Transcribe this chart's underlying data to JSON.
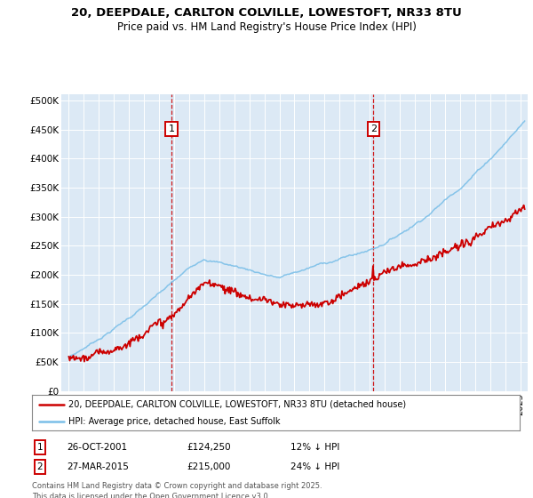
{
  "title_line1": "20, DEEPDALE, CARLTON COLVILLE, LOWESTOFT, NR33 8TU",
  "title_line2": "Price paid vs. HM Land Registry's House Price Index (HPI)",
  "ylabel_ticks": [
    "£0",
    "£50K",
    "£100K",
    "£150K",
    "£200K",
    "£250K",
    "£300K",
    "£350K",
    "£400K",
    "£450K",
    "£500K"
  ],
  "ytick_values": [
    0,
    50000,
    100000,
    150000,
    200000,
    250000,
    300000,
    350000,
    400000,
    450000,
    500000
  ],
  "xlim": [
    1994.5,
    2025.5
  ],
  "ylim": [
    0,
    510000
  ],
  "sale1_x": 2001.82,
  "sale1_y": 124250,
  "sale1_label": "1",
  "sale2_x": 2015.24,
  "sale2_y": 215000,
  "sale2_label": "2",
  "legend_line1": "20, DEEPDALE, CARLTON COLVILLE, LOWESTOFT, NR33 8TU (detached house)",
  "legend_line2": "HPI: Average price, detached house, East Suffolk",
  "table_row1": [
    "1",
    "26-OCT-2001",
    "£124,250",
    "12% ↓ HPI"
  ],
  "table_row2": [
    "2",
    "27-MAR-2015",
    "£215,000",
    "24% ↓ HPI"
  ],
  "footnote": "Contains HM Land Registry data © Crown copyright and database right 2025.\nThis data is licensed under the Open Government Licence v3.0.",
  "hpi_color": "#7bbfe8",
  "price_color": "#cc0000",
  "dashed_line_color": "#cc0000",
  "bg_color": "#ffffff",
  "plot_bg_color": "#dce9f5"
}
